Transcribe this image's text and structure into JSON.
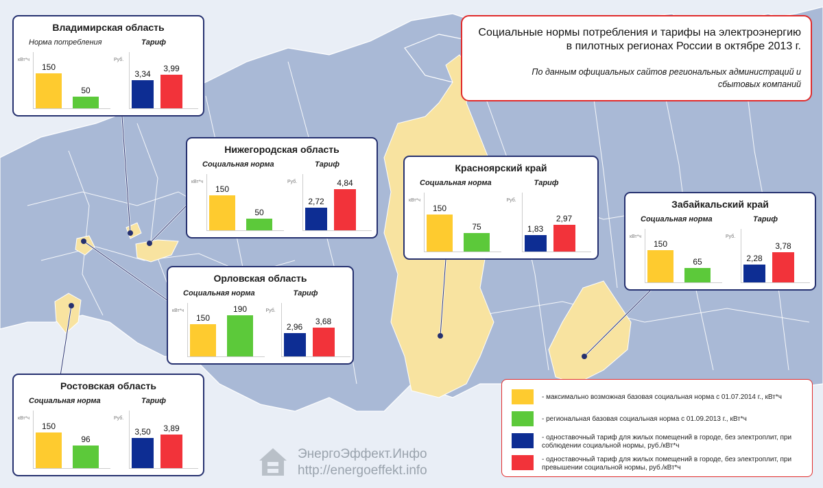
{
  "title": {
    "line1": "Социальные нормы потребления и тарифы на электроэнергию",
    "line2": "в пилотных регионах России в октябре 2013 г.",
    "source_line1": "По данным официальных сайтов региональных администраций и",
    "source_line2": "сбытовых компаний"
  },
  "colors": {
    "yellow": "#fecb2f",
    "green": "#5cc93a",
    "blue": "#0d2d93",
    "red": "#f2333a",
    "card_border": "#25306f",
    "accent_border": "#e02a2a",
    "region_highlight": "#f8e3a0",
    "map_land": "#a9b9d6"
  },
  "chart_data": [
    {
      "type": "bar",
      "region": "Владимирская область",
      "norm_title": "Норма потребления",
      "tariff_title": "Тариф",
      "norm_unit": "кВт*ч",
      "tariff_unit": "Руб.",
      "norm_values": [
        150,
        50
      ],
      "norm_labels": [
        "150",
        "50"
      ],
      "tariff_values": [
        3.34,
        3.99
      ],
      "tariff_labels": [
        "3,34",
        "3,99"
      ]
    },
    {
      "type": "bar",
      "region": "Нижегородская область",
      "norm_title": "Социальная норма",
      "tariff_title": "Тариф",
      "norm_unit": "кВт*ч",
      "tariff_unit": "Руб.",
      "norm_values": [
        150,
        50
      ],
      "norm_labels": [
        "150",
        "50"
      ],
      "tariff_values": [
        2.72,
        4.84
      ],
      "tariff_labels": [
        "2,72",
        "4,84"
      ]
    },
    {
      "type": "bar",
      "region": "Орловская область",
      "norm_title": "Социальная норма",
      "tariff_title": "Тариф",
      "norm_unit": "кВт*ч",
      "tariff_unit": "Руб.",
      "norm_values": [
        150,
        190
      ],
      "norm_labels": [
        "150",
        "190"
      ],
      "tariff_values": [
        2.96,
        3.68
      ],
      "tariff_labels": [
        "2,96",
        "3,68"
      ]
    },
    {
      "type": "bar",
      "region": "Ростовская область",
      "norm_title": "Социальная норма",
      "tariff_title": "Тариф",
      "norm_unit": "кВт*ч",
      "tariff_unit": "Руб.",
      "norm_values": [
        150,
        96
      ],
      "norm_labels": [
        "150",
        "96"
      ],
      "tariff_values": [
        3.5,
        3.89
      ],
      "tariff_labels": [
        "3,50",
        "3,89"
      ]
    },
    {
      "type": "bar",
      "region": "Красноярский край",
      "norm_title": "Социальная норма",
      "tariff_title": "Тариф",
      "norm_unit": "кВт*ч",
      "tariff_unit": "Руб.",
      "norm_values": [
        150,
        75
      ],
      "norm_labels": [
        "150",
        "75"
      ],
      "tariff_values": [
        1.83,
        2.97
      ],
      "tariff_labels": [
        "1,83",
        "2,97"
      ]
    },
    {
      "type": "bar",
      "region": "Забайкальский край",
      "norm_title": "Социальная норма",
      "tariff_title": "Тариф",
      "norm_unit": "кВт*ч",
      "tariff_unit": "Руб.",
      "norm_values": [
        150,
        65
      ],
      "norm_labels": [
        "150",
        "65"
      ],
      "tariff_values": [
        2.28,
        3.78
      ],
      "tariff_labels": [
        "2,28",
        "3,78"
      ]
    }
  ],
  "legend": [
    {
      "color": "#fecb2f",
      "text": "- максимально возможная базовая социальная норма с 01.07.2014 г., кВт*ч"
    },
    {
      "color": "#5cc93a",
      "text": "- региональная базовая социальная норма с 01.09.2013 г., кВт*ч"
    },
    {
      "color": "#0d2d93",
      "text": "- одноставочный тариф для жилых помещений в городе, без электроплит, при соблюдении социальной нормы, руб./кВт*ч"
    },
    {
      "color": "#f2333a",
      "text": "- одноставочный тариф для жилых помещений в городе, без электроплит, при превышении социальной нормы, руб./кВт*ч"
    }
  ],
  "watermark": {
    "name": "ЭнергоЭффект.Инфо",
    "url": "http://energoeffekt.info",
    "icon": "house-logo-icon"
  }
}
